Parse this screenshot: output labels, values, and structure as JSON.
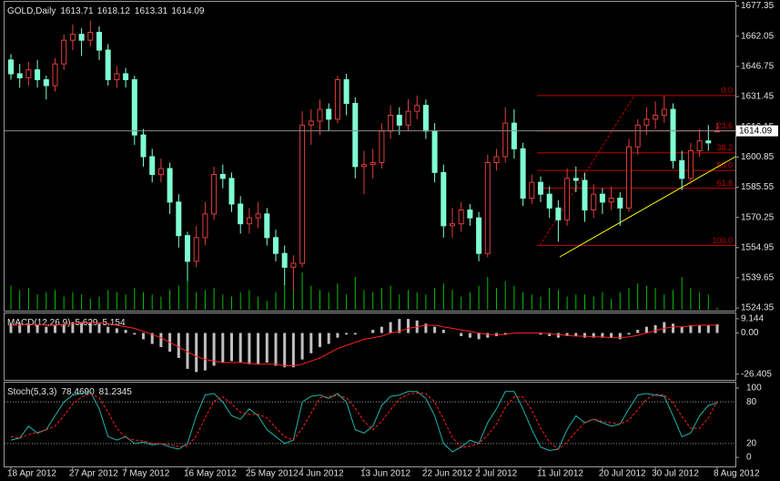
{
  "chart_data": [
    {
      "type": "candlestick",
      "title": "GOLD,Daily",
      "categories": [
        "18 Apr 2012",
        null,
        null,
        null,
        null,
        null,
        null,
        "27 Apr 2012",
        null,
        null,
        null,
        null,
        null,
        "7 May 2012",
        null,
        null,
        null,
        null,
        null,
        null,
        "16 May 2012",
        null,
        null,
        null,
        null,
        null,
        null,
        "25 May 2012",
        null,
        null,
        null,
        null,
        null,
        "4 Jun 2012",
        null,
        null,
        null,
        null,
        null,
        null,
        "13 Jun 2012",
        null,
        null,
        null,
        null,
        null,
        null,
        "22 Jun 2012",
        null,
        null,
        null,
        null,
        null,
        "2 Jul 2012",
        null,
        null,
        null,
        null,
        null,
        null,
        "11 Jul 2012",
        null,
        null,
        null,
        null,
        null,
        null,
        "20 Jul 2012",
        null,
        null,
        null,
        null,
        null,
        "30 Jul 2012",
        null,
        null,
        null,
        null,
        null,
        null,
        "8 Aug 2012"
      ],
      "open": [
        1650,
        1643,
        1641,
        1645,
        1640,
        1637,
        1648,
        1660,
        1663,
        1660,
        1664,
        1655,
        1640,
        1643,
        1640,
        1612,
        1601,
        1592,
        1595,
        1578,
        1561,
        1548,
        1560,
        1572,
        1592,
        1590,
        1577,
        1567,
        1570,
        1572,
        1560,
        1552,
        1545,
        1547,
        1617,
        1619,
        1625,
        1620,
        1640,
        1628,
        1596,
        1597,
        1598,
        1614,
        1622,
        1617,
        1624,
        1627,
        1614,
        1593,
        1566,
        1567,
        1574,
        1570,
        1552,
        1598,
        1601,
        1618,
        1605,
        1580,
        1588,
        1582,
        1575,
        1569,
        1590,
        1589,
        1574,
        1582,
        1578,
        1580,
        1575,
        1606,
        1617,
        1620,
        1622,
        1625,
        1599,
        1590,
        1604,
        1609,
        1613.71
      ],
      "high": [
        1653,
        1648,
        1649,
        1650,
        1642,
        1651,
        1663,
        1668,
        1666,
        1670,
        1667,
        1658,
        1647,
        1646,
        1642,
        1615,
        1605,
        1600,
        1598,
        1582,
        1563,
        1566,
        1578,
        1596,
        1597,
        1593,
        1581,
        1575,
        1578,
        1575,
        1564,
        1556,
        1551,
        1624,
        1625,
        1630,
        1628,
        1642,
        1643,
        1631,
        1604,
        1605,
        1618,
        1627,
        1626,
        1630,
        1632,
        1630,
        1618,
        1597,
        1575,
        1578,
        1577,
        1573,
        1602,
        1605,
        1626,
        1625,
        1608,
        1592,
        1591,
        1586,
        1579,
        1595,
        1596,
        1593,
        1587,
        1585,
        1586,
        1583,
        1610,
        1620,
        1626,
        1629,
        1632,
        1628,
        1604,
        1608,
        1615,
        1617,
        1618.12
      ],
      "low": [
        1640,
        1636,
        1637,
        1636,
        1630,
        1634,
        1645,
        1655,
        1652,
        1657,
        1650,
        1637,
        1636,
        1636,
        1607,
        1596,
        1588,
        1588,
        1572,
        1555,
        1538,
        1545,
        1556,
        1569,
        1585,
        1573,
        1562,
        1562,
        1565,
        1556,
        1548,
        1536,
        1533,
        1545,
        1607,
        1612,
        1614,
        1618,
        1622,
        1590,
        1582,
        1590,
        1595,
        1610,
        1612,
        1614,
        1620,
        1610,
        1588,
        1560,
        1560,
        1563,
        1566,
        1548,
        1550,
        1594,
        1598,
        1600,
        1576,
        1577,
        1578,
        1570,
        1558,
        1566,
        1583,
        1568,
        1570,
        1572,
        1574,
        1566,
        1573,
        1602,
        1612,
        1615,
        1618,
        1595,
        1584,
        1587,
        1601,
        1604,
        1613.31
      ],
      "close": [
        1643,
        1641,
        1645,
        1640,
        1637,
        1648,
        1660,
        1663,
        1660,
        1664,
        1655,
        1640,
        1643,
        1640,
        1612,
        1601,
        1592,
        1595,
        1578,
        1561,
        1548,
        1560,
        1572,
        1592,
        1590,
        1577,
        1567,
        1570,
        1572,
        1560,
        1552,
        1545,
        1547,
        1617,
        1619,
        1625,
        1620,
        1640,
        1628,
        1596,
        1597,
        1598,
        1614,
        1622,
        1617,
        1624,
        1627,
        1614,
        1593,
        1566,
        1567,
        1574,
        1570,
        1552,
        1598,
        1601,
        1618,
        1605,
        1580,
        1588,
        1582,
        1575,
        1569,
        1590,
        1589,
        1574,
        1582,
        1578,
        1580,
        1575,
        1606,
        1617,
        1620,
        1622,
        1625,
        1599,
        1590,
        1604,
        1609,
        1608,
        1614.09
      ],
      "volume": [
        22,
        18,
        20,
        14,
        16,
        18,
        12,
        16,
        14,
        10,
        12,
        18,
        16,
        14,
        20,
        16,
        14,
        12,
        18,
        22,
        30,
        16,
        18,
        20,
        14,
        12,
        16,
        18,
        12,
        8,
        16,
        24,
        26,
        34,
        22,
        18,
        16,
        24,
        14,
        30,
        18,
        16,
        20,
        22,
        14,
        18,
        16,
        14,
        20,
        24,
        18,
        12,
        16,
        22,
        30,
        20,
        26,
        22,
        16,
        14,
        12,
        20,
        18,
        12,
        14,
        14,
        12,
        16,
        10,
        16,
        20,
        24,
        22,
        20,
        14,
        18,
        30,
        20,
        16,
        14,
        2
      ],
      "up_color": "#e03c3c",
      "down_color": "#7fffd4",
      "volume_color": "#00c000",
      "ylim": [
        1523,
        1679
      ],
      "yticks": [
        1677.35,
        1662.05,
        1646.75,
        1631.45,
        1616.15,
        1600.85,
        1585.55,
        1570.25,
        1554.95,
        1539.65,
        1524.35
      ],
      "fibonacci": {
        "color": "#c00000",
        "levels": [
          {
            "label": "0.0",
            "value": 1632
          },
          {
            "label": "23.6",
            "value": 1614.06
          },
          {
            "label": "38.2",
            "value": 1602.97
          },
          {
            "label": "50.0",
            "value": 1594
          },
          {
            "label": "61.8",
            "value": 1585.03
          },
          {
            "label": "100.0",
            "value": 1556
          }
        ]
      },
      "trendline_color": "#ffff00"
    },
    {
      "type": "macd",
      "title": "MACD(12,26,9)",
      "histogram": [
        6,
        6,
        6,
        5,
        4,
        5,
        6,
        7,
        7,
        7,
        6,
        4,
        3,
        2,
        -1,
        -4,
        -7,
        -9,
        -12,
        -16,
        -23,
        -25,
        -24,
        -21,
        -19,
        -18,
        -19,
        -20,
        -20,
        -19,
        -21,
        -22,
        -22,
        -17,
        -13,
        -9,
        -7,
        -3,
        -1,
        -1,
        0,
        2,
        4,
        7,
        9,
        9,
        8,
        6,
        4,
        2,
        0,
        -2,
        -3,
        -4,
        -3,
        -2,
        -1,
        0,
        0,
        0,
        -1,
        -2,
        -3,
        -2,
        -2,
        -3,
        -3,
        -3,
        -3,
        -4,
        -1,
        2,
        4,
        5,
        7,
        6,
        4,
        5,
        5,
        5.2,
        5.629
      ],
      "signal": [
        5,
        5,
        5.5,
        5.5,
        5,
        5,
        5.5,
        6,
        6.5,
        6.7,
        6.5,
        6,
        5,
        4,
        3,
        1,
        -1,
        -3,
        -6,
        -9,
        -12,
        -15,
        -17,
        -18,
        -19,
        -19,
        -19,
        -19.5,
        -20,
        -20,
        -20,
        -21,
        -21,
        -20,
        -18,
        -16,
        -13,
        -10,
        -8,
        -6,
        -4,
        -3,
        -2,
        0,
        1,
        3,
        4,
        5,
        5,
        4,
        3,
        2,
        1,
        0,
        -1,
        -1,
        -1,
        0,
        0,
        0,
        0,
        -0.5,
        -1,
        -1.5,
        -2,
        -2,
        -2.5,
        -2.5,
        -3,
        -3,
        -2.5,
        -1.5,
        0,
        1.5,
        3,
        4,
        4,
        4.5,
        5,
        5,
        5.154
      ],
      "histogram_color": "#c0c0c0",
      "signal_color": "#ff2020",
      "ylim": [
        -29.5,
        12
      ],
      "yticks": [
        9.144,
        {
          "value": 0,
          "label": "0.00"
        },
        -26.405
      ]
    },
    {
      "type": "line",
      "title": "Stoch(5,3,3)",
      "header_values": [
        "78.4690",
        "81.2345"
      ],
      "main": [
        25,
        28,
        45,
        35,
        40,
        60,
        80,
        90,
        92,
        95,
        70,
        30,
        25,
        30,
        20,
        22,
        18,
        20,
        15,
        12,
        20,
        60,
        90,
        92,
        80,
        60,
        55,
        70,
        60,
        40,
        30,
        20,
        25,
        80,
        88,
        90,
        85,
        92,
        80,
        40,
        35,
        45,
        75,
        88,
        90,
        95,
        95,
        85,
        60,
        20,
        8,
        15,
        25,
        20,
        50,
        70,
        95,
        95,
        70,
        40,
        15,
        10,
        12,
        40,
        60,
        50,
        55,
        50,
        45,
        48,
        70,
        90,
        92,
        90,
        88,
        60,
        30,
        35,
        60,
        75,
        78.469
      ],
      "signal": [
        30,
        28,
        33,
        36,
        40,
        45,
        60,
        77,
        87,
        92,
        86,
        65,
        42,
        28,
        25,
        24,
        20,
        20,
        18,
        16,
        16,
        31,
        57,
        81,
        87,
        77,
        65,
        62,
        62,
        57,
        43,
        30,
        25,
        42,
        64,
        86,
        88,
        89,
        86,
        71,
        52,
        40,
        52,
        69,
        84,
        91,
        93,
        92,
        80,
        55,
        29,
        14,
        16,
        20,
        32,
        48,
        72,
        87,
        87,
        68,
        42,
        22,
        12,
        22,
        37,
        50,
        55,
        52,
        50,
        48,
        54,
        69,
        84,
        91,
        90,
        79,
        59,
        42,
        42,
        57,
        81.2345
      ],
      "main_color": "#20b2aa",
      "signal_color": "#ff2020",
      "ylim": [
        -13,
        106.5
      ],
      "yticks": [
        100,
        0
      ],
      "levels": [
        80,
        20
      ]
    }
  ]
}
